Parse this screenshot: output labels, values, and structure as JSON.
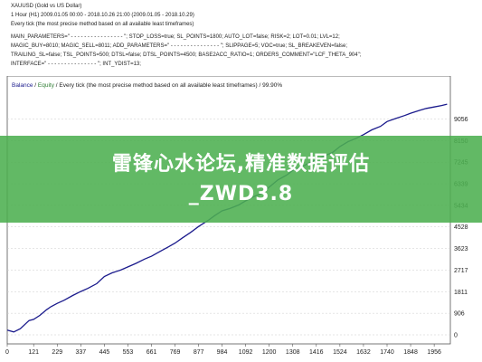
{
  "report": {
    "title": "XAUUSD (Gold vs US Dollar)",
    "period": "1 Hour (H1) 2009.01.05 00:00 - 2018.10.26 21:00 (2009.01.05 - 2018.10.29)",
    "model": "Every tick (the most precise method based on all available least timeframes)",
    "params": [
      "MAIN_PARAMETERS=\" - - - - - - - - - - - - - - - - \"; STOP_LOSS=true; SL_POINTS=1800; AUTO_LOT=false; RISK=2; LOT=0.01; LVL=12;",
      "MAGIC_BUY=8010; MAGIC_SELL=8011; ADD_PARAMETERS=\" - - - - - - - - - - - - - - - \"; SLIPPAGE=5; VOC=true; SL_BREAKEVEN=false;",
      "TRAILING_SL=false; TSL_POINTS=500; DTSL=false; DTSL_POINTS=4500; BASE2ACC_RATIO=1; ORDERS_COMMENT=\"LCF_THETA_904\";",
      "INTERFACE=\" - - - - - - - - - - - - - - - \"; INT_YDIST=13;"
    ]
  },
  "legend": {
    "balance": "Balance",
    "sep": " / ",
    "equity": "Equity",
    "rest": " / Every tick (the most precise method based on all available least timeframes) / 99.90%"
  },
  "overlay_text": "雷锋心水论坛,精准数据评估_ZWD3.8",
  "colors": {
    "balance": "#1a1a8c",
    "equity": "#2e7d32",
    "axis": "#555555",
    "grid": "#cccccc",
    "overlay": "#4caf50"
  },
  "chart_data": {
    "type": "line",
    "title": "",
    "xlabel": "",
    "ylabel": "",
    "xlim": [
      0,
      2030
    ],
    "ylim": [
      0,
      10100
    ],
    "x_ticks": [
      0,
      121,
      229,
      337,
      445,
      553,
      661,
      769,
      877,
      984,
      1092,
      1200,
      1308,
      1416,
      1524,
      1632,
      1740,
      1848,
      1956
    ],
    "y_ticks": [
      0,
      906,
      1811,
      2717,
      3623,
      4528,
      5434,
      6339,
      7245,
      8150,
      9056
    ],
    "y_tick_labels": [
      "0",
      "906",
      "1811",
      "2717",
      "3623",
      "4528",
      "5434",
      "6339",
      "7245",
      "8150",
      "9056"
    ],
    "series": [
      {
        "name": "Balance",
        "x": [
          0,
          30,
          60,
          100,
          121,
          150,
          180,
          200,
          229,
          260,
          300,
          337,
          370,
          410,
          445,
          480,
          520,
          553,
          590,
          630,
          661,
          700,
          740,
          769,
          800,
          840,
          877,
          920,
          950,
          984,
          1020,
          1060,
          1092,
          1130,
          1170,
          1200,
          1240,
          1280,
          1308,
          1350,
          1380,
          1416,
          1450,
          1490,
          1524,
          1560,
          1600,
          1632,
          1670,
          1710,
          1740,
          1780,
          1820,
          1848,
          1890,
          1920,
          1956,
          1990,
          2015
        ],
        "values": [
          200,
          120,
          260,
          600,
          650,
          820,
          1050,
          1180,
          1320,
          1450,
          1650,
          1820,
          1950,
          2150,
          2450,
          2600,
          2720,
          2850,
          3000,
          3180,
          3300,
          3500,
          3700,
          3850,
          4050,
          4300,
          4550,
          4800,
          5000,
          5200,
          5300,
          5450,
          5620,
          5800,
          5950,
          6200,
          6500,
          6700,
          6900,
          7050,
          7200,
          7350,
          7500,
          7650,
          7900,
          8100,
          8250,
          8400,
          8600,
          8750,
          8950,
          9080,
          9200,
          9300,
          9420,
          9500,
          9560,
          9620,
          9680
        ]
      }
    ]
  }
}
